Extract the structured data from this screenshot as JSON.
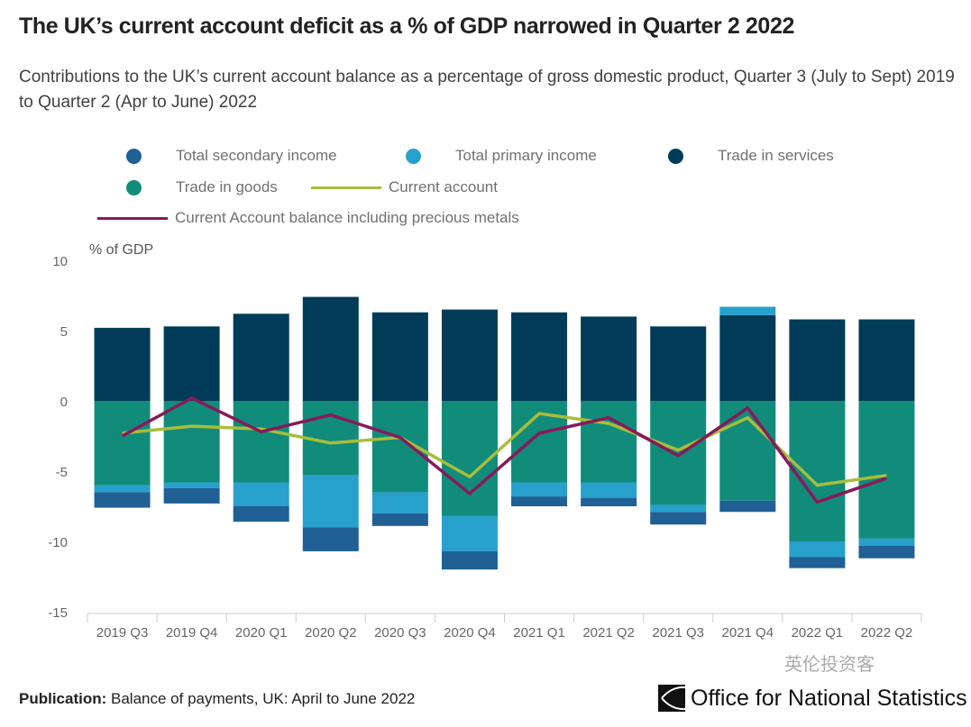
{
  "title": "The UK’s current account deficit as a % of GDP narrowed in Quarter 2 2022",
  "subtitle": "Contributions to the UK’s current account balance as a percentage of gross domestic product, Quarter 3 (July to Sept) 2019 to Quarter 2 (Apr to June) 2022",
  "footer": {
    "label": "Publication:",
    "text": " Balance of payments, UK: April to June 2022"
  },
  "logo": {
    "text": "Office for National Statistics"
  },
  "watermark": "英伦投资客",
  "chart_data": {
    "type": "bar",
    "stacked": true,
    "ylabel": "% of GDP",
    "ylim": [
      -15,
      10
    ],
    "yticks": [
      10,
      5,
      0,
      -5,
      -10,
      -15
    ],
    "categories": [
      "2019 Q3",
      "2019 Q4",
      "2020 Q1",
      "2020 Q2",
      "2020 Q3",
      "2020 Q4",
      "2021 Q1",
      "2021 Q2",
      "2021 Q3",
      "2021 Q4",
      "2022 Q1",
      "2022 Q2"
    ],
    "series": [
      {
        "name": "Trade in services",
        "kind": "bar",
        "color": "#003c57",
        "values": [
          5.2,
          5.3,
          6.2,
          7.4,
          6.3,
          6.5,
          6.3,
          6.0,
          5.3,
          6.1,
          5.8,
          5.8
        ]
      },
      {
        "name": "Trade in goods",
        "kind": "bar",
        "color": "#118c7b",
        "values": [
          -6.0,
          -5.8,
          -5.8,
          -5.3,
          -6.5,
          -8.2,
          -5.8,
          -5.8,
          -7.4,
          -7.1,
          -10.0,
          -9.8
        ]
      },
      {
        "name": "Total primary income",
        "kind": "bar",
        "color": "#27a0cc",
        "values": [
          -0.5,
          -0.4,
          -1.7,
          -3.7,
          -1.5,
          -2.5,
          -1.0,
          -1.1,
          -0.5,
          0.6,
          -1.1,
          -0.5
        ]
      },
      {
        "name": "Total secondary income",
        "kind": "bar",
        "color": "#206095",
        "values": [
          -1.1,
          -1.1,
          -1.1,
          -1.7,
          -0.9,
          -1.3,
          -0.7,
          -0.6,
          -0.9,
          -0.8,
          -0.8,
          -0.9
        ]
      },
      {
        "name": "Current account",
        "kind": "line",
        "color": "#a8bd3a",
        "values": [
          -2.3,
          -1.8,
          -2.0,
          -3.0,
          -2.6,
          -5.4,
          -0.9,
          -1.6,
          -3.5,
          -1.2,
          -6.0,
          -5.3
        ]
      },
      {
        "name": "Current Account balance including precious metals",
        "kind": "line",
        "color": "#871a5b",
        "values": [
          -2.5,
          0.2,
          -2.2,
          -1.0,
          -2.6,
          -6.6,
          -2.3,
          -1.2,
          -3.9,
          -0.5,
          -7.2,
          -5.5
        ]
      }
    ],
    "legend_order": [
      "Total secondary income",
      "Total primary income",
      "Trade in services",
      "Trade in goods",
      "Current account",
      "Current Account balance including precious metals"
    ],
    "legend_position": "top",
    "grid": false
  }
}
